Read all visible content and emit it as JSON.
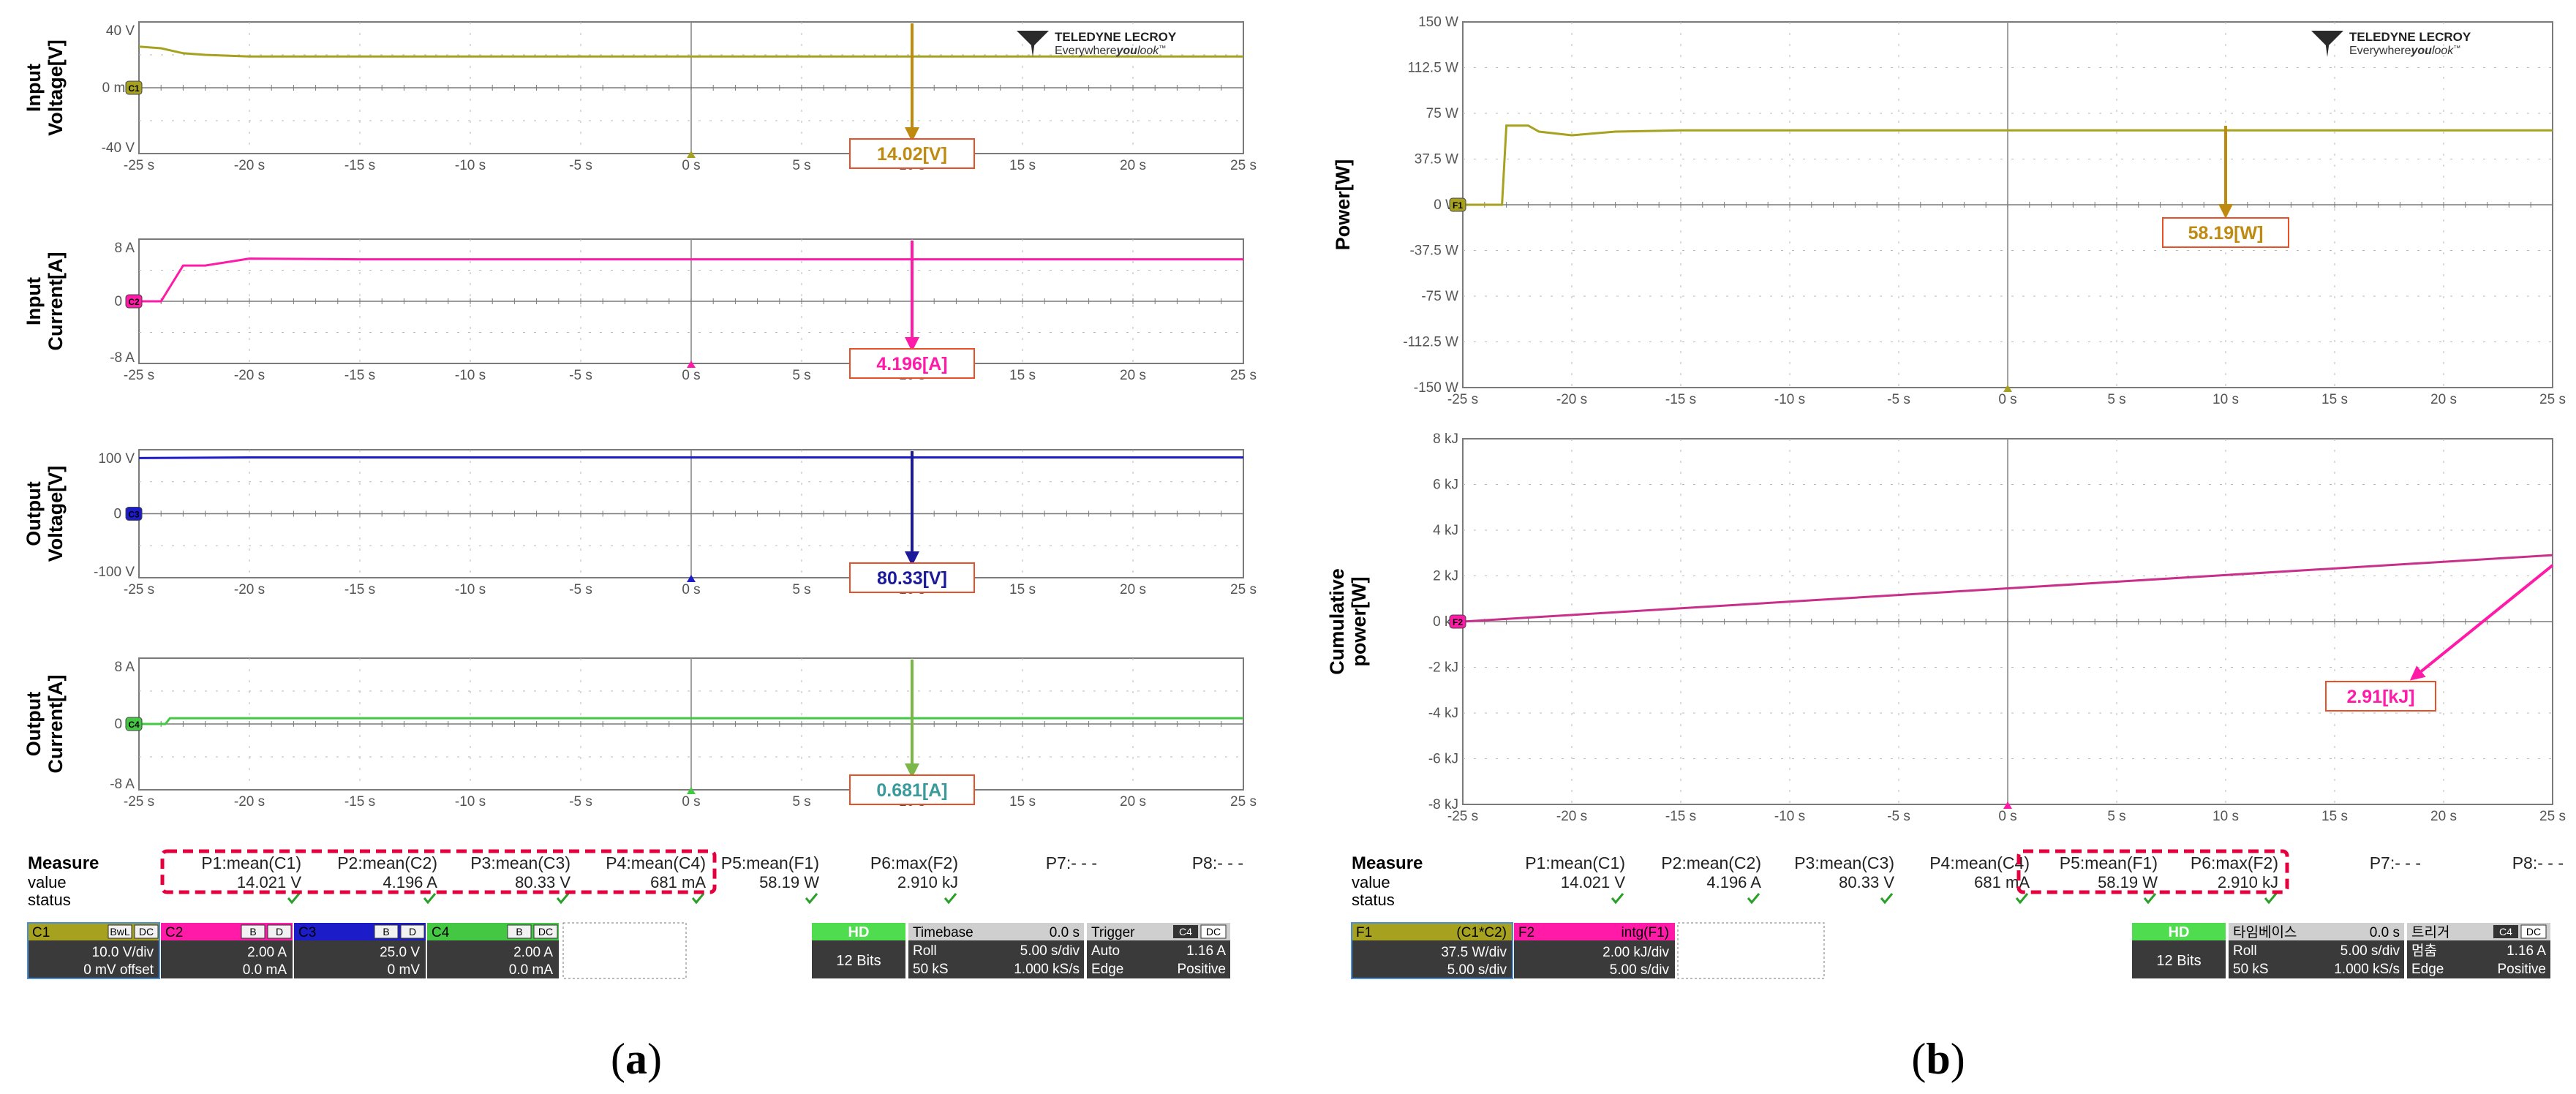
{
  "brand": {
    "name": "TELEDYNE LECROY",
    "tagline_pre": "Everywhere",
    "tagline_mid": "you",
    "tagline_post": "look"
  },
  "colors": {
    "yellow": "#a6a220",
    "magenta": "#ff1aa8",
    "blue": "#1c1cc8",
    "green": "#44c844",
    "purple": "#c8308a",
    "boxRed": "#e8502a",
    "arrowYellow": "#bf8a10",
    "arrowBlue": "#1a1a9a",
    "arrowGreen": "#7ab648",
    "red": "#e4003c"
  },
  "time_ticks": [
    "-25 s",
    "-20 s",
    "-15 s",
    "-10 s",
    "-5 s",
    "0 s",
    "5 s",
    "10 s",
    "15 s",
    "20 s",
    "25 s"
  ],
  "panels": {
    "a": {
      "caption_pre": "(",
      "caption_letter": "a",
      "caption_post": ")",
      "measure": {
        "header": "Measure",
        "value_label": "value",
        "status_label": "status",
        "columns": [
          {
            "name": "P1:mean(C1)",
            "value": "14.021 V"
          },
          {
            "name": "P2:mean(C2)",
            "value": "4.196 A"
          },
          {
            "name": "P3:mean(C3)",
            "value": "80.33 V"
          },
          {
            "name": "P4:mean(C4)",
            "value": "681 mA"
          },
          {
            "name": "P5:mean(F1)",
            "value": "58.19 W"
          },
          {
            "name": "P6:max(F2)",
            "value": "2.910 kJ"
          },
          {
            "name": "P7:- - -",
            "value": ""
          },
          {
            "name": "P8:- - -",
            "value": ""
          }
        ]
      },
      "channels": [
        {
          "id": "C1",
          "badges": [
            "BwL",
            "DC"
          ],
          "line1": "10.0 V/div",
          "line2": "0 mV offset"
        },
        {
          "id": "C2",
          "badges": [
            "B",
            "D"
          ],
          "line1": "2.00 A",
          "line2": "0.0 mA"
        },
        {
          "id": "C3",
          "badges": [
            "B",
            "D"
          ],
          "line1": "25.0 V",
          "line2": "0 mV"
        },
        {
          "id": "C4",
          "badges": [
            "B",
            "DC"
          ],
          "line1": "2.00 A",
          "line2": "0.0 mA"
        }
      ],
      "hd": {
        "label": "HD",
        "bits": "12 Bits"
      },
      "timebase": {
        "title": "Timebase",
        "offset": "0.0 s",
        "mode": "Roll",
        "per_div": "5.00 s/div",
        "samples": "50 kS",
        "rate": "1.000 kS/s"
      },
      "trigger": {
        "title": "Trigger",
        "src": "C4",
        "coupling": "DC",
        "mode": "Auto",
        "level": "1.16 A",
        "type": "Edge",
        "slope": "Positive"
      }
    },
    "b": {
      "caption_pre": "(",
      "caption_letter": "b",
      "caption_post": ")",
      "measure": {
        "header": "Measure",
        "value_label": "value",
        "status_label": "status",
        "columns": [
          {
            "name": "P1:mean(C1)",
            "value": "14.021 V"
          },
          {
            "name": "P2:mean(C2)",
            "value": "4.196 A"
          },
          {
            "name": "P3:mean(C3)",
            "value": "80.33 V"
          },
          {
            "name": "P4:mean(C4)",
            "value": "681 mA"
          },
          {
            "name": "P5:mean(F1)",
            "value": "58.19 W"
          },
          {
            "name": "P6:max(F2)",
            "value": "2.910 kJ"
          },
          {
            "name": "P7:- - -",
            "value": ""
          },
          {
            "name": "P8:- - -",
            "value": ""
          }
        ]
      },
      "functions": [
        {
          "id": "F1",
          "expr": "(C1*C2)",
          "line1": "37.5 W/div",
          "line2": "5.00 s/div"
        },
        {
          "id": "F2",
          "expr": "intg(F1)",
          "line1": "2.00 kJ/div",
          "line2": "5.00 s/div"
        }
      ],
      "hd": {
        "label": "HD",
        "bits": "12 Bits"
      },
      "timebase": {
        "title": "타임베이스",
        "offset": "0.0 s",
        "mode": "Roll",
        "per_div": "5.00 s/div",
        "samples": "50 kS",
        "rate": "1.000 kS/s"
      },
      "trigger": {
        "title": "트리거",
        "src": "C4",
        "coupling": "DC",
        "mode": "멈춤",
        "level": "1.16 A",
        "type": "Edge",
        "slope": "Positive"
      }
    }
  },
  "chart_data": [
    {
      "type": "line",
      "panel": "a",
      "trace_id": "C1",
      "color": "#a6a220",
      "ylabel": [
        "Input",
        "Voltage[V]"
      ],
      "yticks": [
        "40 V",
        "0 mV",
        "-40 V"
      ],
      "ylim": [
        -40,
        40
      ],
      "xlim": [
        -25,
        25
      ],
      "x": [
        -25,
        -24,
        -23,
        -22,
        -20,
        -15,
        -10,
        -5,
        0,
        5,
        10,
        15,
        20,
        25
      ],
      "y": [
        25,
        24,
        21,
        20,
        19,
        19,
        19,
        19,
        19,
        19,
        19,
        19,
        19,
        19
      ],
      "annotation": "14.02[V]",
      "annotation_x": 10
    },
    {
      "type": "line",
      "panel": "a",
      "trace_id": "C2",
      "color": "#ff1aa8",
      "ylabel": [
        "Input",
        "Current[A]"
      ],
      "yticks": [
        "8 A",
        "0 A",
        "-8 A"
      ],
      "ylim": [
        -8,
        8
      ],
      "xlim": [
        -25,
        25
      ],
      "x": [
        -25,
        -24,
        -23,
        -22,
        -20,
        -15,
        -10,
        -5,
        0,
        5,
        10,
        15,
        20,
        25
      ],
      "y": [
        0,
        0,
        4.6,
        4.6,
        5.5,
        5.4,
        5.4,
        5.4,
        5.4,
        5.4,
        5.4,
        5.4,
        5.4,
        5.4
      ],
      "annotation": "4.196[A]",
      "annotation_x": 10
    },
    {
      "type": "line",
      "panel": "a",
      "trace_id": "C3",
      "color": "#1c1cc8",
      "ylabel": [
        "Output",
        "Voltage[V]"
      ],
      "yticks": [
        "100 V",
        "0 V",
        "-100 V"
      ],
      "ylim": [
        -100,
        100
      ],
      "xlim": [
        -25,
        25
      ],
      "x": [
        -25,
        -20,
        -15,
        -10,
        -5,
        0,
        5,
        10,
        15,
        20,
        25
      ],
      "y": [
        87,
        88,
        88,
        88,
        88,
        88,
        88,
        88,
        88,
        88,
        88
      ],
      "annotation": "80.33[V]",
      "annotation_x": 10
    },
    {
      "type": "line",
      "panel": "a",
      "trace_id": "C4",
      "color": "#44c844",
      "ylabel": [
        "Output",
        "Current[A]"
      ],
      "yticks": [
        "8 A",
        "0 A",
        "-8 A"
      ],
      "ylim": [
        -8,
        8
      ],
      "xlim": [
        -25,
        25
      ],
      "x": [
        -25,
        -23.8,
        -23.6,
        -20,
        -15,
        -10,
        -5,
        0,
        5,
        10,
        15,
        20,
        25
      ],
      "y": [
        0,
        0,
        0.7,
        0.7,
        0.7,
        0.7,
        0.7,
        0.7,
        0.7,
        0.7,
        0.7,
        0.7,
        0.7
      ],
      "annotation": "0.681[A]",
      "annotation_x": 10
    },
    {
      "type": "line",
      "panel": "b",
      "trace_id": "F1",
      "color": "#a6a220",
      "ylabel": [
        "Power[W]"
      ],
      "yticks": [
        "150 W",
        "112.5 W",
        "75 W",
        "37.5 W",
        "0 W",
        "-37.5 W",
        "-75 W",
        "-112.5 W",
        "-150 W"
      ],
      "ylim": [
        -150,
        150
      ],
      "xlim": [
        -25,
        25
      ],
      "x": [
        -25,
        -23.2,
        -23,
        -22,
        -21.5,
        -20,
        -18,
        -15,
        -10,
        -5,
        0,
        5,
        10,
        15,
        20,
        25
      ],
      "y": [
        0,
        0,
        65,
        65,
        60,
        57,
        60,
        61,
        61,
        61,
        61,
        61,
        61,
        61,
        61,
        61
      ],
      "annotation": "58.19[W]",
      "annotation_x": 10
    },
    {
      "type": "line",
      "panel": "b",
      "trace_id": "F2",
      "color": "#c8308a",
      "ylabel": [
        "Cumulative",
        "power[W]"
      ],
      "yticks": [
        "8 kJ",
        "6 kJ",
        "4 kJ",
        "2 kJ",
        "0 kJ",
        "-2 kJ",
        "-4 kJ",
        "-6 kJ",
        "-8 kJ"
      ],
      "ylim": [
        -8,
        8
      ],
      "xlim": [
        -25,
        25
      ],
      "x": [
        -25,
        25
      ],
      "y": [
        0,
        2.91
      ],
      "annotation": "2.91[kJ]",
      "annotation_x": 18
    }
  ]
}
